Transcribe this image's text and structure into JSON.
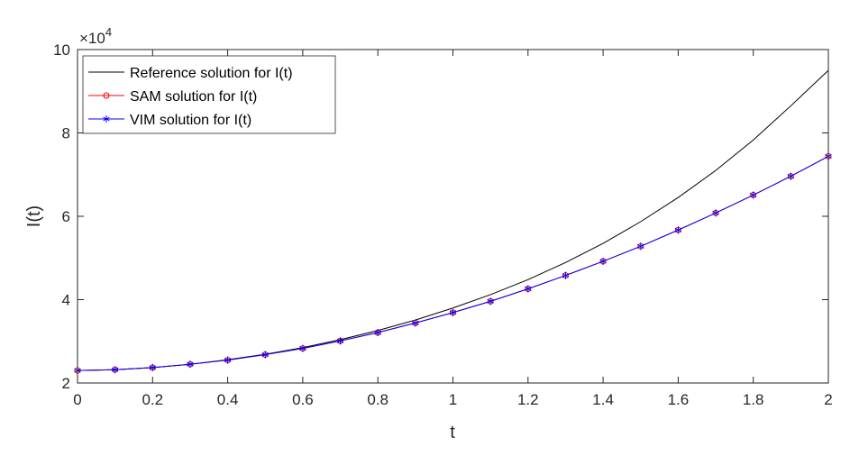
{
  "chart_data": {
    "type": "line",
    "title": "",
    "xlabel": "t",
    "ylabel": "I(t)",
    "xlim": [
      0,
      2
    ],
    "ylim": [
      2,
      10
    ],
    "y_exponent_label": "×10",
    "y_exponent_power": "4",
    "x_ticks": [
      0,
      0.2,
      0.4,
      0.6,
      0.8,
      1,
      1.2,
      1.4,
      1.6,
      1.8,
      2
    ],
    "x_tick_labels": [
      "0",
      "0.2",
      "0.4",
      "0.6",
      "0.8",
      "1",
      "1.2",
      "1.4",
      "1.6",
      "1.8",
      "2"
    ],
    "y_ticks": [
      2,
      4,
      6,
      8,
      10
    ],
    "y_tick_labels": [
      "2",
      "4",
      "6",
      "8",
      "10"
    ],
    "grid": false,
    "legend_position": "top-left",
    "x": [
      0,
      0.1,
      0.2,
      0.3,
      0.4,
      0.5,
      0.6,
      0.7,
      0.8,
      0.9,
      1.0,
      1.1,
      1.2,
      1.3,
      1.4,
      1.5,
      1.6,
      1.7,
      1.8,
      1.9,
      2.0
    ],
    "series": [
      {
        "name": "Reference solution for I(t)",
        "color": "#000000",
        "marker": "none",
        "values": [
          2.3,
          2.32,
          2.37,
          2.45,
          2.56,
          2.69,
          2.85,
          3.04,
          3.26,
          3.51,
          3.8,
          4.12,
          4.48,
          4.89,
          5.35,
          5.87,
          6.45,
          7.1,
          7.83,
          8.65,
          9.5
        ]
      },
      {
        "name": "SAM solution for I(t)",
        "color": "#ff0000",
        "marker": "circle",
        "values": [
          2.3,
          2.32,
          2.37,
          2.45,
          2.55,
          2.68,
          2.83,
          3.01,
          3.21,
          3.44,
          3.69,
          3.96,
          4.26,
          4.58,
          4.92,
          5.28,
          5.67,
          6.08,
          6.51,
          6.96,
          7.44
        ]
      },
      {
        "name": "VIM solution for I(t)",
        "color": "#0000ff",
        "marker": "asterisk",
        "values": [
          2.3,
          2.32,
          2.37,
          2.45,
          2.55,
          2.68,
          2.83,
          3.01,
          3.21,
          3.44,
          3.69,
          3.96,
          4.26,
          4.58,
          4.92,
          5.28,
          5.67,
          6.08,
          6.51,
          6.96,
          7.44
        ]
      }
    ]
  }
}
